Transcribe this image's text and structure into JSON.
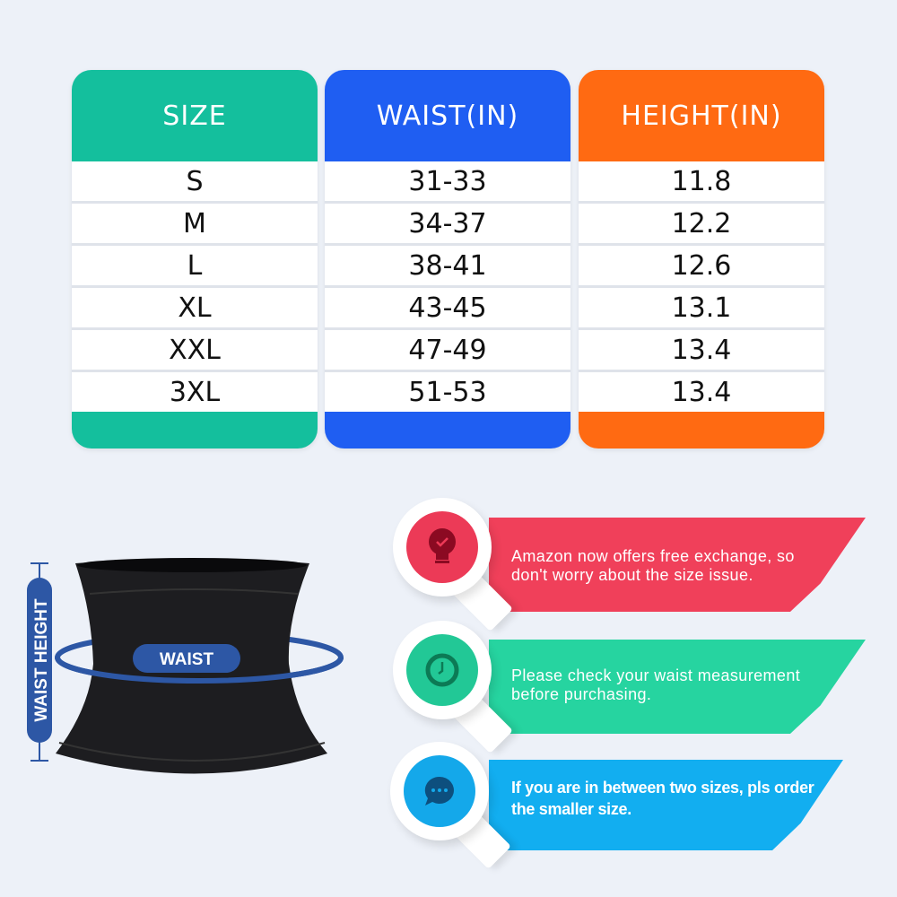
{
  "colors": {
    "size": "#14bf9d",
    "waist": "#1f5ef2",
    "height": "#ff6a12",
    "tip1": "#f0405a",
    "tip2": "#26d4a0",
    "tip3": "#12aef0",
    "accent_blue": "#2d57a5"
  },
  "table": {
    "headers": {
      "size": "SIZE",
      "waist": "WAIST(IN)",
      "height": "HEIGHT(IN)"
    },
    "rows": [
      {
        "size": "S",
        "waist": "31-33",
        "height": "11.8"
      },
      {
        "size": "M",
        "waist": "34-37",
        "height": "12.2"
      },
      {
        "size": "L",
        "waist": "38-41",
        "height": "12.6"
      },
      {
        "size": "XL",
        "waist": "43-45",
        "height": "13.1"
      },
      {
        "size": "XXL",
        "waist": "47-49",
        "height": "13.4"
      },
      {
        "size": "3XL",
        "waist": "51-53",
        "height": "13.4"
      }
    ]
  },
  "diagram": {
    "waist_label": "WAIST",
    "waist_height_label": "WAIST HEIGHT"
  },
  "tips": [
    {
      "icon": "lightbulb-check-icon",
      "text1": "Amazon now offers free exchange, so",
      "text2": "don't worry about the size issue."
    },
    {
      "icon": "clock-icon",
      "text1": "Please check your waist measurement",
      "text2": "before purchasing."
    },
    {
      "icon": "chat-bubble-icon",
      "text1": "If you are in between two sizes, pls order",
      "text2": "the smaller size."
    }
  ]
}
